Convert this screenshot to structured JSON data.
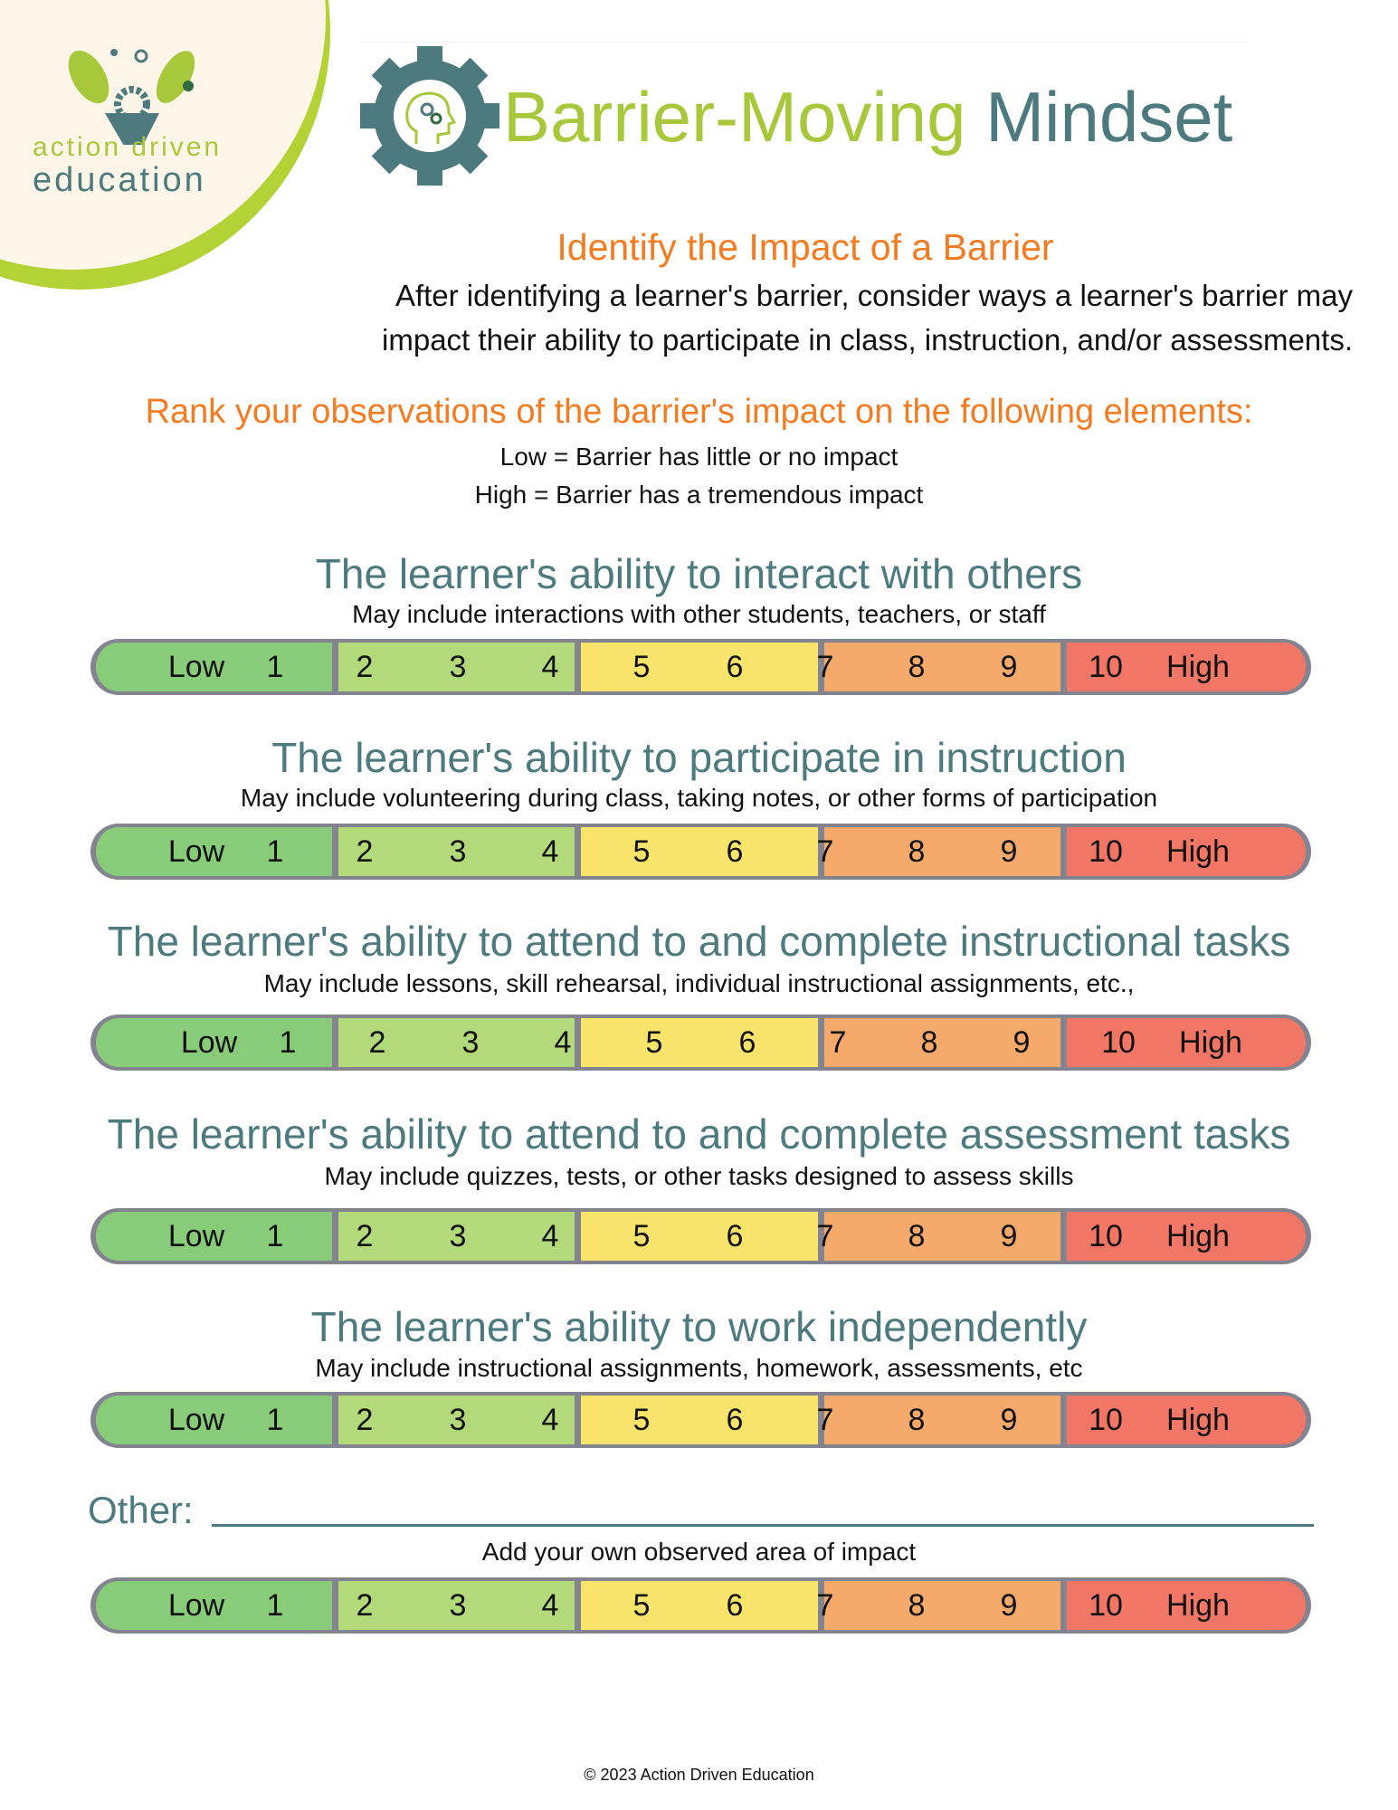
{
  "logo": {
    "line1a": "action",
    "line1b": "driven",
    "line2": "education"
  },
  "header": {
    "title_part1": "Barrier-Moving",
    "title_part2": "Mindset"
  },
  "intro": {
    "heading": "Identify the Impact of a Barrier",
    "line1": "After identifying a learner's barrier, consider ways a learner's barrier may",
    "line2": "impact their ability to participate in class, instruction, and/or assessments."
  },
  "rank": {
    "heading": "Rank your observations of the barrier's impact on the following elements:",
    "low_def": "Low = Barrier has little or no impact",
    "high_def": "High = Barrier has a tremendous impact"
  },
  "scale": {
    "low_label": "Low",
    "high_label": "High",
    "numbers": [
      "1",
      "2",
      "3",
      "4",
      "5",
      "6",
      "7",
      "8",
      "9",
      "10"
    ],
    "colors": [
      "#88cc7a",
      "#b2d97a",
      "#f9e46b",
      "#f5a96a",
      "#f27665"
    ],
    "border_color": "#848491"
  },
  "sections": [
    {
      "title": "The learner's ability to interact with others",
      "subtitle": "May include interactions with other students, teachers, or staff"
    },
    {
      "title": "The learner's ability to participate in instruction",
      "subtitle": "May include volunteering during class, taking notes, or other forms of participation"
    },
    {
      "title": "The learner's ability to attend to and complete instructional tasks",
      "subtitle": "May include lessons, skill rehearsal, individual instructional assignments, etc.,"
    },
    {
      "title": "The learner's ability to attend to and complete assessment tasks",
      "subtitle": "May include quizzes, tests, or other tasks designed to assess skills"
    },
    {
      "title": "The learner's ability to work independently",
      "subtitle": "May include instructional assignments, homework, assessments, etc"
    }
  ],
  "other": {
    "label": "Other:",
    "value": "",
    "subtitle": "Add your own observed area of impact"
  },
  "footer": {
    "copyright": "© 2023 Action Driven Education"
  }
}
